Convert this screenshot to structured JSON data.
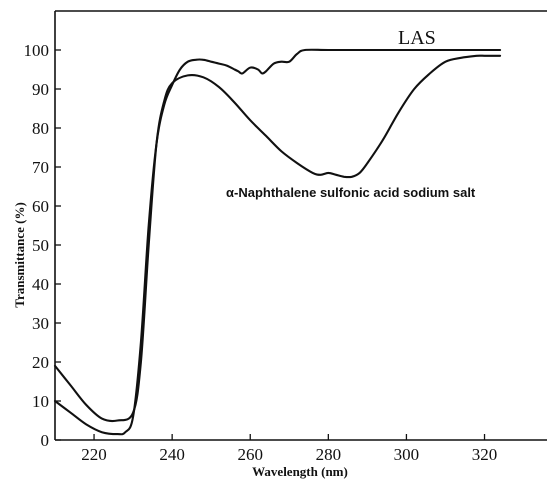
{
  "chart_data": {
    "type": "line",
    "xlabel": "Wavelength (nm)",
    "ylabel": "Transmittance (%)",
    "xlim": [
      210,
      336
    ],
    "ylim": [
      0,
      110
    ],
    "x_ticks": [
      220,
      240,
      260,
      280,
      300,
      320
    ],
    "y_ticks": [
      0,
      10,
      20,
      30,
      40,
      50,
      60,
      70,
      80,
      90,
      100
    ],
    "grid": false,
    "series": [
      {
        "name": "LAS",
        "x": [
          210,
          214,
          218,
          222,
          226,
          228,
          230,
          232,
          234,
          236,
          238,
          240,
          242,
          244,
          246,
          248,
          250,
          252,
          254,
          256,
          257,
          258,
          260,
          262,
          263,
          264,
          266,
          268,
          270,
          272,
          274,
          280,
          290,
          300,
          310,
          320,
          324
        ],
        "y": [
          10,
          7,
          4,
          2,
          1.5,
          2,
          6,
          25,
          55,
          76,
          86,
          91,
          95,
          97,
          97.5,
          97.5,
          97,
          96.5,
          96,
          95,
          94.5,
          94,
          95.5,
          95,
          94,
          94.5,
          96.5,
          97,
          97,
          99,
          100,
          100,
          100,
          100,
          100,
          100,
          100
        ]
      },
      {
        "name": "α-Naphthalene sulfonic acid sodium salt",
        "x": [
          210,
          214,
          218,
          222,
          226,
          230,
          232,
          234,
          236,
          238,
          240,
          244,
          248,
          252,
          256,
          260,
          264,
          268,
          272,
          276,
          278,
          280,
          282,
          284,
          286,
          288,
          290,
          294,
          298,
          302,
          306,
          310,
          314,
          318,
          320,
          322,
          324
        ],
        "y": [
          19,
          14,
          9,
          5.5,
          5,
          7,
          20,
          50,
          76,
          87,
          91.5,
          93.5,
          93,
          90.5,
          86.5,
          82,
          78,
          74,
          71,
          68.5,
          68,
          68.5,
          68,
          67.5,
          67.5,
          68.5,
          71,
          77,
          84,
          90,
          94,
          97,
          98,
          98.5,
          98.5,
          98.5,
          98.5
        ]
      }
    ],
    "annotations": [
      "LAS",
      "α-Naphthalene sulfonic acid sodium salt"
    ]
  }
}
